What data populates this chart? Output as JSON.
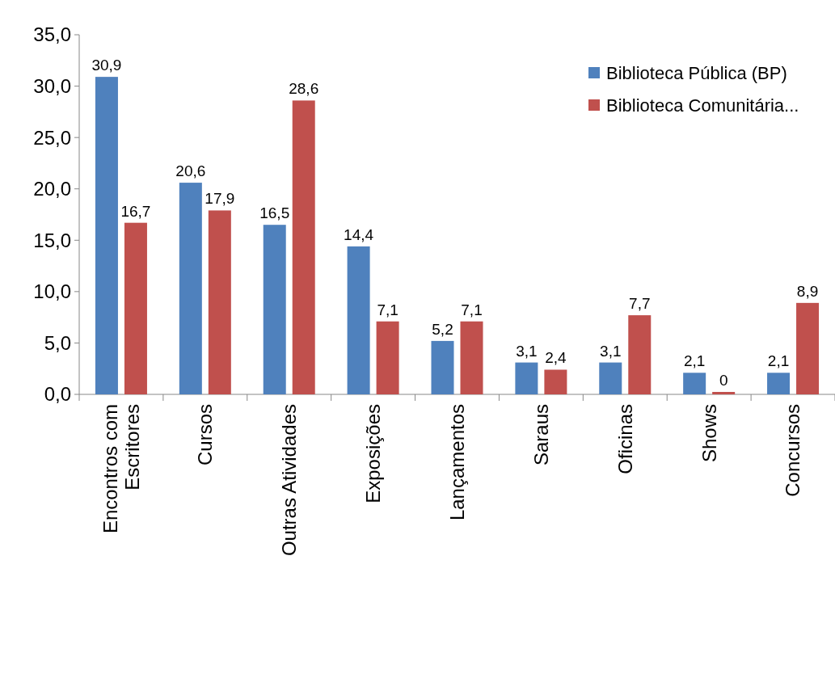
{
  "chart_data": {
    "type": "bar",
    "categories": [
      "Encontros com Escritores",
      "Cursos",
      "Outras Atividades",
      "Exposições",
      "Lançamentos",
      "Saraus",
      "Oficinas",
      "Shows",
      "Concursos"
    ],
    "series": [
      {
        "name": "Biblioteca Pública (BP)",
        "color": "#4f81bd",
        "values": [
          30.9,
          20.6,
          16.5,
          14.4,
          5.2,
          3.1,
          3.1,
          2.1,
          2.1
        ],
        "value_labels": [
          "30,9",
          "20,6",
          "16,5",
          "14,4",
          "5,2",
          "3,1",
          "3,1",
          "2,1",
          "2,1"
        ]
      },
      {
        "name": "Biblioteca Comunitária...",
        "color": "#c0504d",
        "values": [
          16.7,
          17.9,
          28.6,
          7.1,
          7.1,
          2.4,
          7.7,
          0,
          8.9
        ],
        "value_labels": [
          "16,7",
          "17,9",
          "28,6",
          "7,1",
          "7,1",
          "2,4",
          "7,7",
          "0",
          "8,9"
        ]
      }
    ],
    "ylim": [
      0,
      35
    ],
    "yticks": [
      {
        "value": 0,
        "label": "0,0"
      },
      {
        "value": 5,
        "label": "5,0"
      },
      {
        "value": 10,
        "label": "10,0"
      },
      {
        "value": 15,
        "label": "15,0"
      },
      {
        "value": 20,
        "label": "20,0"
      },
      {
        "value": 25,
        "label": "25,0"
      },
      {
        "value": 30,
        "label": "30,0"
      },
      {
        "value": 35,
        "label": "35,0"
      }
    ],
    "grid": false,
    "legend": "top right"
  }
}
